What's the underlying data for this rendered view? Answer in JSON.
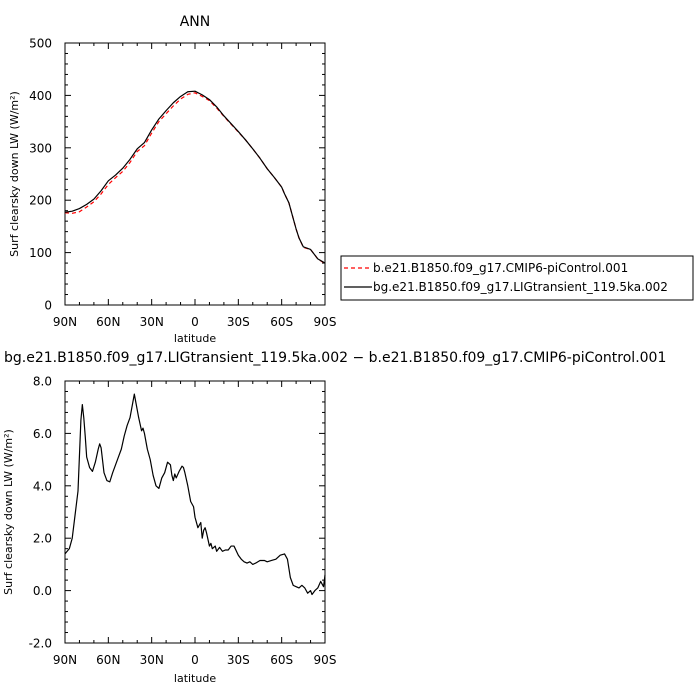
{
  "chart_data": [
    {
      "type": "line",
      "title": "ANN",
      "xlabel": "latitude",
      "ylabel": "Surf clearsky down LW (W/m²)",
      "x_ticks": [
        "90N",
        "60N",
        "30N",
        "0",
        "30S",
        "60S",
        "90S"
      ],
      "y_ticks": [
        "0",
        "100",
        "200",
        "300",
        "400",
        "500"
      ],
      "xlim": [
        90,
        -90
      ],
      "ylim": [
        0,
        500
      ],
      "legend_position": "right",
      "series": [
        {
          "name": "b.e21.B1850.f09_g17.CMIP6-piControl.001",
          "color": "#ff0000",
          "dash": "dashed",
          "x": [
            90,
            85,
            80,
            75,
            70,
            65,
            60,
            55,
            50,
            45,
            40,
            35,
            30,
            25,
            20,
            15,
            10,
            5,
            0,
            -5,
            -10,
            -15,
            -20,
            -25,
            -30,
            -35,
            -40,
            -45,
            -50,
            -55,
            -60,
            -62,
            -65,
            -68,
            -70,
            -72,
            -75,
            -80,
            -85,
            -90
          ],
          "values": [
            176,
            175,
            178,
            187,
            197,
            212,
            230,
            243,
            255,
            272,
            293,
            304,
            328,
            350,
            365,
            380,
            393,
            402,
            405,
            398,
            390,
            376,
            360,
            345,
            330,
            315,
            298,
            280,
            260,
            243,
            225,
            212,
            195,
            165,
            145,
            128,
            110,
            106,
            88,
            79
          ]
        },
        {
          "name": "bg.e21.B1850.f09_g17.LIGtransient_119.5ka.002",
          "color": "#000000",
          "dash": "solid",
          "x": [
            90,
            85,
            80,
            75,
            70,
            65,
            60,
            55,
            50,
            45,
            40,
            35,
            30,
            25,
            20,
            15,
            10,
            5,
            0,
            -5,
            -10,
            -15,
            -20,
            -25,
            -30,
            -35,
            -40,
            -45,
            -50,
            -55,
            -60,
            -62,
            -65,
            -68,
            -70,
            -72,
            -75,
            -80,
            -85,
            -90
          ],
          "values": [
            177,
            179,
            184,
            192,
            202,
            218,
            237,
            248,
            261,
            278,
            298,
            310,
            334,
            355,
            371,
            386,
            398,
            407,
            408,
            401,
            392,
            378,
            361,
            346,
            331,
            315,
            298,
            280,
            260,
            243,
            225,
            212,
            195,
            165,
            145,
            128,
            111,
            106,
            88,
            80
          ]
        }
      ]
    },
    {
      "type": "line",
      "title": "bg.e21.B1850.f09_g17.LIGtransient_119.5ka.002 − b.e21.B1850.f09_g17.CMIP6-piControl.001",
      "xlabel": "latitude",
      "ylabel": "Surf clearsky down LW (W/m²)",
      "x_ticks": [
        "90N",
        "60N",
        "30N",
        "0",
        "30S",
        "60S",
        "90S"
      ],
      "y_ticks": [
        "-2.0",
        "0.0",
        "2.0",
        "4.0",
        "6.0",
        "8.0"
      ],
      "xlim": [
        90,
        -90
      ],
      "ylim": [
        -2,
        8
      ],
      "series": [
        {
          "name": "",
          "color": "#000000",
          "dash": "solid",
          "x": [
            90,
            87,
            85,
            83,
            81,
            79,
            78,
            77,
            76,
            75,
            73,
            71,
            69,
            67,
            66,
            65,
            63,
            61,
            59,
            57,
            55,
            53,
            51,
            49,
            47,
            45,
            43,
            42,
            41,
            39,
            37,
            36,
            35,
            33,
            31,
            29,
            27,
            25,
            23,
            21,
            19,
            17,
            16,
            15,
            14,
            13,
            11,
            9,
            8,
            7,
            5,
            3,
            1,
            0,
            -2,
            -4,
            -5,
            -6,
            -7,
            -8,
            -10,
            -11,
            -12,
            -14,
            -15,
            -17,
            -19,
            -21,
            -23,
            -25,
            -27,
            -30,
            -32,
            -34,
            -36,
            -38,
            -40,
            -42,
            -45,
            -48,
            -50,
            -53,
            -56,
            -59,
            -62,
            -64,
            -66,
            -68,
            -70,
            -72,
            -74,
            -76,
            -78,
            -80,
            -81,
            -83,
            -85,
            -87,
            -89,
            -90
          ],
          "values": [
            1.4,
            1.6,
            2.0,
            2.9,
            3.8,
            6.5,
            7.1,
            6.6,
            5.9,
            5.1,
            4.7,
            4.55,
            4.9,
            5.4,
            5.6,
            5.45,
            4.5,
            4.2,
            4.15,
            4.5,
            4.8,
            5.1,
            5.4,
            5.9,
            6.3,
            6.6,
            7.2,
            7.5,
            7.2,
            6.6,
            6.1,
            6.2,
            6.0,
            5.4,
            5.0,
            4.4,
            4.0,
            3.9,
            4.3,
            4.5,
            4.9,
            4.8,
            4.4,
            4.2,
            4.45,
            4.3,
            4.55,
            4.75,
            4.7,
            4.5,
            4.0,
            3.4,
            3.2,
            2.8,
            2.4,
            2.6,
            2.0,
            2.3,
            2.4,
            2.2,
            1.7,
            1.8,
            1.6,
            1.7,
            1.5,
            1.65,
            1.5,
            1.55,
            1.55,
            1.7,
            1.7,
            1.35,
            1.2,
            1.1,
            1.05,
            1.1,
            1.0,
            1.05,
            1.15,
            1.15,
            1.1,
            1.15,
            1.2,
            1.35,
            1.4,
            1.2,
            0.5,
            0.2,
            0.15,
            0.1,
            0.2,
            0.1,
            -0.1,
            0.0,
            -0.15,
            0.0,
            0.1,
            0.35,
            0.15,
            0.6
          ]
        }
      ]
    }
  ]
}
